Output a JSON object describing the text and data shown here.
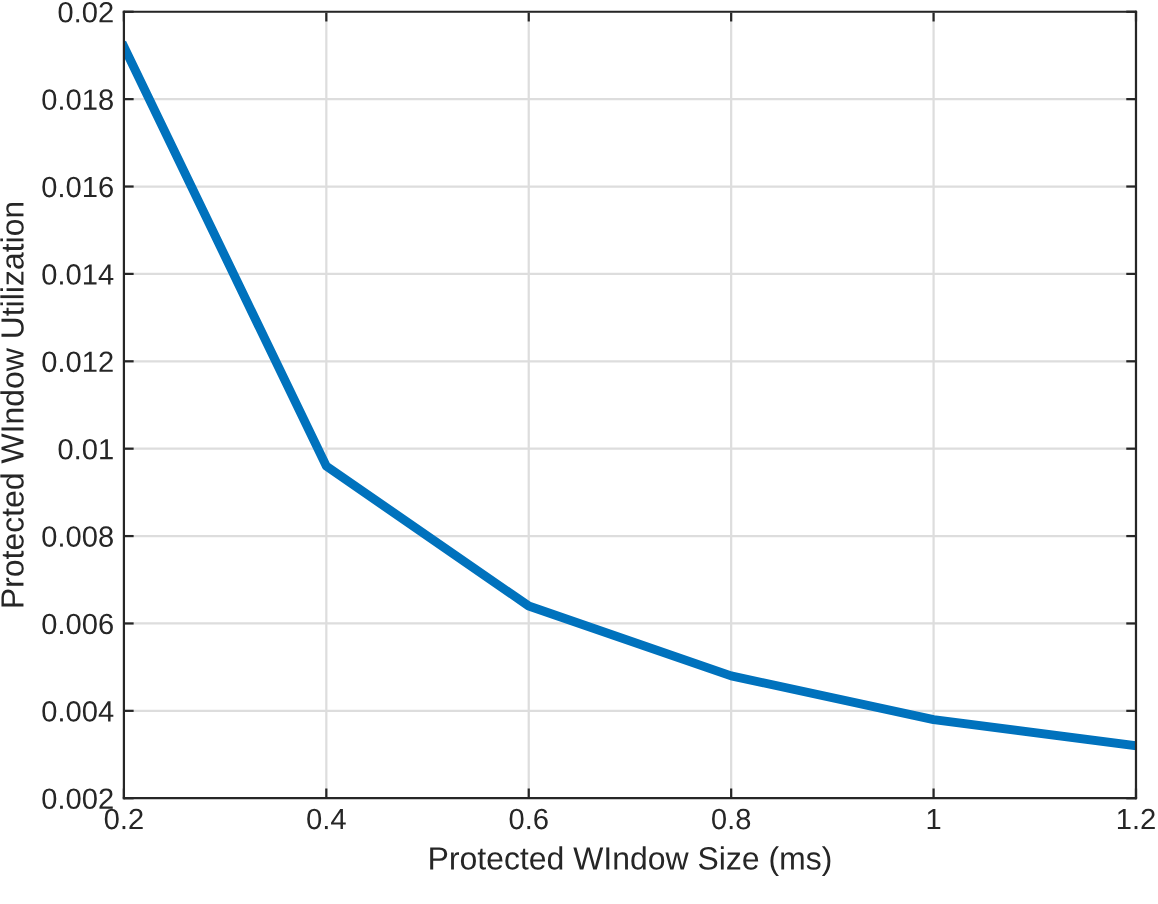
{
  "chart_data": {
    "type": "line",
    "xlabel": "Protected WIndow Size (ms)",
    "ylabel": "Protected WIndow Utilization",
    "x": [
      0.2,
      0.4,
      0.6,
      0.8,
      1,
      1.2
    ],
    "series": [
      {
        "color": "#0072bd",
        "values": [
          0.0192,
          0.0096,
          0.0064,
          0.0048,
          0.0038,
          0.0032
        ]
      }
    ],
    "xlim": [
      0.2,
      1.2
    ],
    "xticks": [
      0.2,
      0.4,
      0.6,
      0.8,
      1,
      1.2
    ],
    "ylim": [
      0.002,
      0.02
    ],
    "yticks": [
      0.002,
      0.004,
      0.006,
      0.008,
      0.01,
      0.012,
      0.014,
      0.016,
      0.018,
      0.02
    ],
    "grid": true,
    "marker": "none",
    "line_style": "solid"
  }
}
